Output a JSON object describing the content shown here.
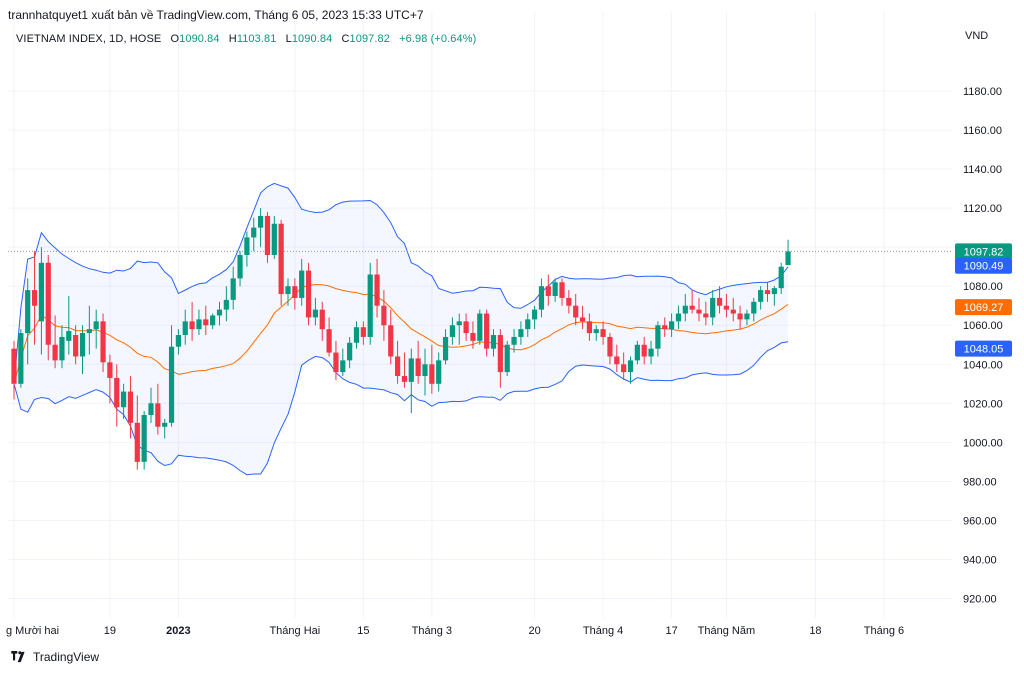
{
  "publisher_line": "trannhatquyet1 xuất bản về TradingView.com, Tháng 6 05, 2023 15:33 UTC+7",
  "legend": {
    "symbol": "VIETNAM INDEX, 1D, HOSE",
    "open_label": "O",
    "open_value": "1090.84",
    "high_label": "H",
    "high_value": "1103.81",
    "low_label": "L",
    "low_value": "1090.84",
    "close_label": "C",
    "close_value": "1097.82",
    "change_value": "+6.98 (+0.64%)"
  },
  "currency": "VND",
  "brand": "TradingView",
  "colors": {
    "up": "#089981",
    "down": "#f23645",
    "bands": "#2962ff",
    "basis": "#ff6d00",
    "band_fill": "#2962ff",
    "grid": "#f0f3fa"
  },
  "chart_data": {
    "type": "candlestick",
    "ylim": [
      910,
      1200
    ],
    "y_ticks": [
      "1180.00",
      "1160.00",
      "1140.00",
      "1120.00",
      "1100.00",
      "1080.00",
      "1060.00",
      "1040.00",
      "1020.00",
      "1000.00",
      "980.00",
      "960.00",
      "940.00",
      "920.00"
    ],
    "x_tick_labels": [
      {
        "label": "g Mười hai",
        "index": 0
      },
      {
        "label": "19",
        "index": 14
      },
      {
        "label": "2023",
        "index": 24
      },
      {
        "label": "Tháng Hai",
        "index": 41
      },
      {
        "label": "15",
        "index": 51
      },
      {
        "label": "Tháng 3",
        "index": 61
      },
      {
        "label": "20",
        "index": 76
      },
      {
        "label": "Tháng 4",
        "index": 86
      },
      {
        "label": "17",
        "index": 96
      },
      {
        "label": "Tháng Năm",
        "index": 104
      },
      {
        "label": "18",
        "index": 117
      },
      {
        "label": "Tháng 6",
        "index": 127
      }
    ],
    "ohlc": [
      [
        1048,
        1052,
        1022,
        1030
      ],
      [
        1030,
        1058,
        1028,
        1056
      ],
      [
        1056,
        1084,
        1040,
        1078
      ],
      [
        1078,
        1098,
        1050,
        1070
      ],
      [
        1062,
        1100,
        1045,
        1092
      ],
      [
        1092,
        1096,
        1042,
        1050
      ],
      [
        1050,
        1065,
        1038,
        1042
      ],
      [
        1042,
        1060,
        1038,
        1054
      ],
      [
        1052,
        1075,
        1045,
        1057
      ],
      [
        1055,
        1060,
        1040,
        1044
      ],
      [
        1044,
        1060,
        1035,
        1056
      ],
      [
        1056,
        1070,
        1045,
        1058
      ],
      [
        1058,
        1068,
        1048,
        1062
      ],
      [
        1062,
        1066,
        1036,
        1041
      ],
      [
        1041,
        1045,
        1020,
        1033
      ],
      [
        1033,
        1040,
        1008,
        1018
      ],
      [
        1018,
        1030,
        1012,
        1026
      ],
      [
        1026,
        1034,
        1002,
        1010
      ],
      [
        1010,
        1024,
        986,
        990
      ],
      [
        990,
        1016,
        986,
        1014
      ],
      [
        1014,
        1028,
        1010,
        1020
      ],
      [
        1020,
        1030,
        1004,
        1008
      ],
      [
        1008,
        1012,
        1002,
        1010
      ],
      [
        1010,
        1060,
        1008,
        1049
      ],
      [
        1049,
        1058,
        1045,
        1055
      ],
      [
        1055,
        1068,
        1050,
        1062
      ],
      [
        1062,
        1072,
        1052,
        1058
      ],
      [
        1058,
        1068,
        1055,
        1063
      ],
      [
        1063,
        1070,
        1055,
        1060
      ],
      [
        1060,
        1066,
        1058,
        1065
      ],
      [
        1065,
        1072,
        1060,
        1068
      ],
      [
        1068,
        1080,
        1062,
        1073
      ],
      [
        1073,
        1090,
        1068,
        1084
      ],
      [
        1084,
        1098,
        1080,
        1096
      ],
      [
        1096,
        1108,
        1090,
        1105
      ],
      [
        1105,
        1115,
        1098,
        1110
      ],
      [
        1110,
        1120,
        1100,
        1116
      ],
      [
        1116,
        1118,
        1092,
        1096
      ],
      [
        1096,
        1116,
        1094,
        1112
      ],
      [
        1112,
        1114,
        1070,
        1076
      ],
      [
        1076,
        1084,
        1070,
        1080
      ],
      [
        1080,
        1084,
        1068,
        1074
      ],
      [
        1074,
        1094,
        1070,
        1088
      ],
      [
        1088,
        1092,
        1060,
        1064
      ],
      [
        1064,
        1074,
        1060,
        1068
      ],
      [
        1068,
        1072,
        1052,
        1058
      ],
      [
        1058,
        1064,
        1044,
        1046
      ],
      [
        1046,
        1052,
        1032,
        1036
      ],
      [
        1036,
        1048,
        1034,
        1042
      ],
      [
        1042,
        1054,
        1038,
        1051
      ],
      [
        1051,
        1062,
        1048,
        1059
      ],
      [
        1059,
        1062,
        1050,
        1054
      ],
      [
        1054,
        1092,
        1050,
        1086
      ],
      [
        1086,
        1094,
        1064,
        1070
      ],
      [
        1070,
        1078,
        1052,
        1060
      ],
      [
        1060,
        1068,
        1040,
        1044
      ],
      [
        1044,
        1052,
        1030,
        1034
      ],
      [
        1034,
        1046,
        1028,
        1031
      ],
      [
        1031,
        1048,
        1015,
        1043
      ],
      [
        1043,
        1052,
        1030,
        1034
      ],
      [
        1034,
        1048,
        1024,
        1040
      ],
      [
        1040,
        1050,
        1025,
        1030
      ],
      [
        1030,
        1046,
        1026,
        1042
      ],
      [
        1042,
        1058,
        1040,
        1054
      ],
      [
        1054,
        1064,
        1050,
        1060
      ],
      [
        1060,
        1066,
        1050,
        1062
      ],
      [
        1062,
        1066,
        1052,
        1056
      ],
      [
        1056,
        1062,
        1048,
        1052
      ],
      [
        1052,
        1068,
        1050,
        1066
      ],
      [
        1066,
        1068,
        1044,
        1048
      ],
      [
        1048,
        1058,
        1044,
        1055
      ],
      [
        1055,
        1058,
        1028,
        1036
      ],
      [
        1036,
        1052,
        1034,
        1050
      ],
      [
        1050,
        1058,
        1046,
        1054
      ],
      [
        1054,
        1062,
        1050,
        1058
      ],
      [
        1058,
        1066,
        1054,
        1063
      ],
      [
        1063,
        1070,
        1058,
        1068
      ],
      [
        1068,
        1084,
        1064,
        1080
      ],
      [
        1080,
        1086,
        1070,
        1075
      ],
      [
        1075,
        1084,
        1072,
        1082
      ],
      [
        1082,
        1084,
        1070,
        1074
      ],
      [
        1074,
        1078,
        1066,
        1070
      ],
      [
        1070,
        1076,
        1060,
        1064
      ],
      [
        1064,
        1070,
        1058,
        1062
      ],
      [
        1062,
        1066,
        1052,
        1056
      ],
      [
        1056,
        1060,
        1052,
        1058
      ],
      [
        1058,
        1062,
        1050,
        1054
      ],
      [
        1054,
        1056,
        1040,
        1044
      ],
      [
        1044,
        1050,
        1036,
        1040
      ],
      [
        1040,
        1046,
        1032,
        1036
      ],
      [
        1036,
        1044,
        1030,
        1042
      ],
      [
        1042,
        1052,
        1040,
        1050
      ],
      [
        1050,
        1054,
        1040,
        1044
      ],
      [
        1044,
        1052,
        1040,
        1048
      ],
      [
        1048,
        1062,
        1044,
        1060
      ],
      [
        1060,
        1064,
        1054,
        1058
      ],
      [
        1058,
        1066,
        1054,
        1062
      ],
      [
        1062,
        1070,
        1058,
        1066
      ],
      [
        1066,
        1076,
        1062,
        1070
      ],
      [
        1070,
        1078,
        1066,
        1068
      ],
      [
        1068,
        1074,
        1062,
        1066
      ],
      [
        1066,
        1072,
        1060,
        1064
      ],
      [
        1064,
        1078,
        1060,
        1074
      ],
      [
        1074,
        1080,
        1066,
        1070
      ],
      [
        1070,
        1076,
        1064,
        1068
      ],
      [
        1068,
        1074,
        1062,
        1066
      ],
      [
        1066,
        1070,
        1058,
        1063
      ],
      [
        1063,
        1068,
        1060,
        1066
      ],
      [
        1066,
        1074,
        1062,
        1072
      ],
      [
        1072,
        1080,
        1068,
        1078
      ],
      [
        1078,
        1082,
        1072,
        1076
      ],
      [
        1076,
        1080,
        1070,
        1079
      ],
      [
        1079,
        1092,
        1076,
        1090
      ],
      [
        1090.84,
        1103.81,
        1090.84,
        1097.82
      ]
    ],
    "bollinger": {
      "upper_last": 1090.49,
      "basis_last": 1069.27,
      "lower_last": 1048.05
    },
    "last_price": 1097.82,
    "price_labels": [
      {
        "text": "1097.82",
        "value": 1097.82,
        "color": "#089981"
      },
      {
        "text": "1090.49",
        "value": 1090.49,
        "color": "#2962ff"
      },
      {
        "text": "1069.27",
        "value": 1069.27,
        "color": "#ff6d00"
      },
      {
        "text": "1048.05",
        "value": 1048.05,
        "color": "#2962ff"
      }
    ]
  }
}
